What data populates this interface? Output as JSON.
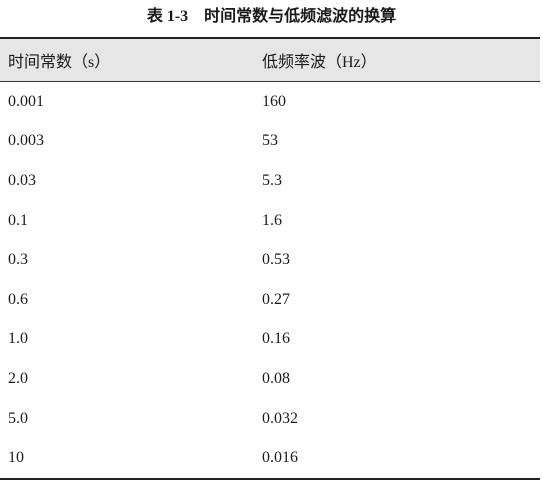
{
  "header": {
    "title": "表 1-3　时间常数与低频滤波的换算"
  },
  "table": {
    "headers": [
      "时间常数（s）",
      "低频率波（Hz）"
    ],
    "rows": [
      [
        "0.001",
        "160"
      ],
      [
        "0.003",
        "53"
      ],
      [
        "0.03",
        "5.3"
      ],
      [
        "0.1",
        "1.6"
      ],
      [
        "0.3",
        "0.53"
      ],
      [
        "0.6",
        "0.27"
      ],
      [
        "1.0",
        "0.16"
      ],
      [
        "2.0",
        "0.08"
      ],
      [
        "5.0",
        "0.032"
      ],
      [
        "10",
        "0.016"
      ]
    ]
  }
}
